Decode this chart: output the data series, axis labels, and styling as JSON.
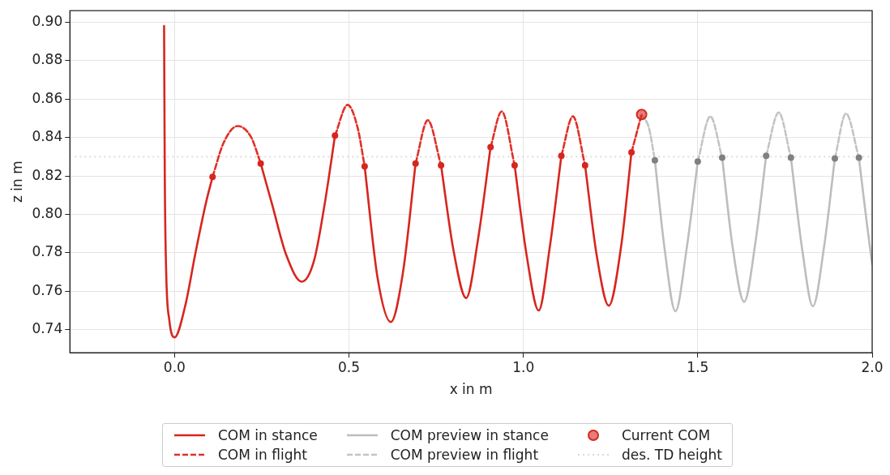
{
  "chart_data": {
    "type": "line",
    "xlabel": "x in m",
    "ylabel": "z in m",
    "xlim": [
      -0.3,
      2.0
    ],
    "ylim": [
      0.728,
      0.906
    ],
    "xticks": [
      {
        "value": 0,
        "label": "0.0"
      },
      {
        "value": 0.5,
        "label": "0.5"
      },
      {
        "value": 1,
        "label": "1.0"
      },
      {
        "value": 1.5,
        "label": "1.5"
      },
      {
        "value": 2,
        "label": "2.0"
      }
    ],
    "yticks": [
      {
        "value": 0.74,
        "label": "0.74"
      },
      {
        "value": 0.76,
        "label": "0.76"
      },
      {
        "value": 0.78,
        "label": "0.78"
      },
      {
        "value": 0.8,
        "label": "0.80"
      },
      {
        "value": 0.82,
        "label": "0.82"
      },
      {
        "value": 0.84,
        "label": "0.84"
      },
      {
        "value": 0.86,
        "label": "0.86"
      },
      {
        "value": 0.88,
        "label": "0.88"
      },
      {
        "value": 0.9,
        "label": "0.90"
      }
    ],
    "grid": true,
    "legend": "bottom",
    "ref_lines": [
      {
        "axis": "y",
        "value": 0.83,
        "label": "des. TD height",
        "color": "#d9d9d9",
        "line_style": "dotted"
      }
    ],
    "series": [
      {
        "name": "COM in stance",
        "color": "#d7261e",
        "line_style": "solid",
        "marker": "none",
        "x": [
          -0.03,
          -0.028,
          -0.024,
          -0.015,
          0.0,
          0.03,
          0.06,
          0.09,
          0.109,
          null,
          0.247,
          0.28,
          0.32,
          0.365,
          0.4,
          0.43,
          0.46,
          null,
          0.545,
          0.582,
          0.62,
          0.655,
          0.691,
          null,
          0.764,
          0.8,
          0.836,
          0.87,
          0.906,
          null,
          0.975,
          1.01,
          1.044,
          1.075,
          1.109,
          null,
          1.177,
          1.21,
          1.245,
          1.28,
          1.31
        ],
        "values": [
          0.898,
          0.82,
          0.77,
          0.745,
          0.736,
          0.752,
          0.78,
          0.806,
          0.8195,
          null,
          0.8265,
          0.805,
          0.779,
          0.765,
          0.776,
          0.805,
          0.841,
          null,
          0.825,
          0.767,
          0.744,
          0.77,
          0.8265,
          null,
          0.8255,
          0.781,
          0.7565,
          0.787,
          0.835,
          null,
          0.8255,
          0.778,
          0.75,
          0.782,
          0.8305,
          null,
          0.8255,
          0.779,
          0.7525,
          0.783,
          0.8323
        ]
      },
      {
        "name": "COM in flight",
        "color": "#e0302a",
        "line_style": "dashed",
        "marker": "none",
        "x": [
          0.109,
          0.14,
          0.181,
          0.22,
          0.247,
          null,
          0.46,
          0.496,
          0.525,
          0.545,
          null,
          0.691,
          0.726,
          0.764,
          null,
          0.906,
          0.938,
          0.975,
          null,
          1.109,
          1.142,
          1.177,
          null,
          1.31,
          1.339
        ],
        "values": [
          0.8195,
          0.837,
          0.846,
          0.84,
          0.8265,
          null,
          0.841,
          0.857,
          0.845,
          0.825,
          null,
          0.8265,
          0.849,
          0.8255,
          null,
          0.835,
          0.8536,
          0.8255,
          null,
          0.8305,
          0.851,
          0.8255,
          null,
          0.8323,
          0.852
        ]
      },
      {
        "name": "COM preview in stance",
        "color": "#bdbdbd",
        "line_style": "solid",
        "marker": "none",
        "x": [
          1.377,
          1.405,
          1.436,
          1.468,
          1.5,
          null,
          1.57,
          1.6,
          1.633,
          1.665,
          1.696,
          null,
          1.767,
          1.8,
          1.83,
          1.862,
          1.893,
          null,
          1.962,
          1.985,
          2.0
        ],
        "values": [
          0.8282,
          0.782,
          0.7496,
          0.782,
          0.8275,
          null,
          0.8295,
          0.783,
          0.7545,
          0.785,
          0.8305,
          null,
          0.8295,
          0.781,
          0.7522,
          0.783,
          0.8291,
          null,
          0.8295,
          0.795,
          0.774
        ]
      },
      {
        "name": "COM preview in flight",
        "color": "#c4c4c4",
        "line_style": "dashed",
        "marker": "none",
        "x": [
          1.339,
          1.36,
          1.377,
          null,
          1.5,
          1.536,
          1.57,
          null,
          1.696,
          1.732,
          1.767,
          null,
          1.893,
          1.925,
          1.962
        ],
        "values": [
          0.852,
          0.845,
          0.8282,
          null,
          0.8275,
          0.851,
          0.8295,
          null,
          0.8305,
          0.853,
          0.8295,
          null,
          0.8291,
          0.8525,
          0.8295
        ]
      },
      {
        "type": "scatter",
        "color": "#d7261e",
        "marker": "circle",
        "x": [
          0.109,
          0.247,
          0.46,
          0.545,
          0.691,
          0.764,
          0.906,
          0.975,
          1.109,
          1.177,
          1.31
        ],
        "values": [
          0.8195,
          0.8265,
          0.841,
          0.825,
          0.8265,
          0.8255,
          0.835,
          0.8255,
          0.8305,
          0.8255,
          0.8323
        ]
      },
      {
        "type": "scatter",
        "color": "#808080",
        "marker": "circle",
        "x": [
          1.377,
          1.5,
          1.57,
          1.696,
          1.767,
          1.893,
          1.962
        ],
        "values": [
          0.8282,
          0.8275,
          0.8295,
          0.8305,
          0.8295,
          0.8291,
          0.8295
        ]
      },
      {
        "name": "Current COM",
        "type": "scatter",
        "color": "#d7261e",
        "marker": "circle",
        "x": [
          1.339
        ],
        "values": [
          0.852
        ]
      }
    ]
  }
}
